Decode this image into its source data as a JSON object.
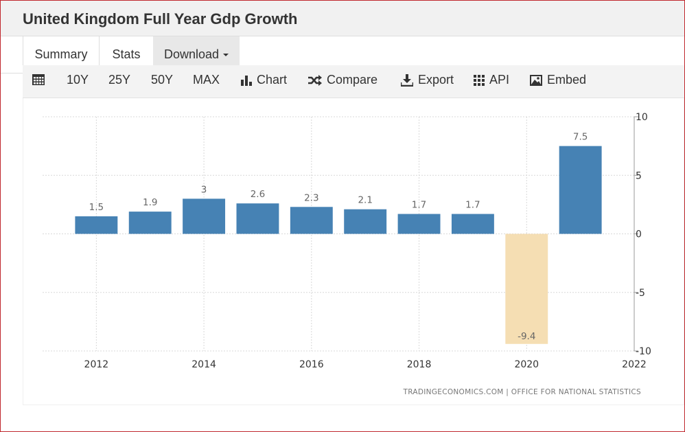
{
  "title": "United Kingdom Full Year Gdp Growth",
  "tabs": {
    "summary": "Summary",
    "stats": "Stats",
    "download": "Download"
  },
  "toolbar": {
    "ranges": [
      "10Y",
      "25Y",
      "50Y",
      "MAX"
    ],
    "chart": "Chart",
    "compare": "Compare",
    "export": "Export",
    "api": "API",
    "embed": "Embed"
  },
  "colors": {
    "positive_bar": "#4682b4",
    "negative_bar": "#f5deb3"
  },
  "chart_data": {
    "type": "bar",
    "x": [
      2012,
      2013,
      2014,
      2015,
      2016,
      2017,
      2018,
      2019,
      2020,
      2021
    ],
    "values": [
      1.5,
      1.9,
      3,
      2.6,
      2.3,
      2.1,
      1.7,
      1.7,
      -9.4,
      7.5
    ],
    "value_labels": [
      "1.5",
      "1.9",
      "3",
      "2.6",
      "2.3",
      "2.1",
      "1.7",
      "1.7",
      "-9.4",
      "7.5"
    ],
    "x_ticks": [
      "2012",
      "2014",
      "2016",
      "2018",
      "2020",
      "2022"
    ],
    "y_ticks": [
      "10",
      "5",
      "0",
      "-5",
      "-10"
    ],
    "ylim": [
      -10,
      10
    ],
    "xlim": [
      2011.0,
      2022.0
    ],
    "grid": true,
    "y_axis_side": "right",
    "source": "TRADINGECONOMICS.COM  |  OFFICE FOR NATIONAL STATISTICS"
  }
}
